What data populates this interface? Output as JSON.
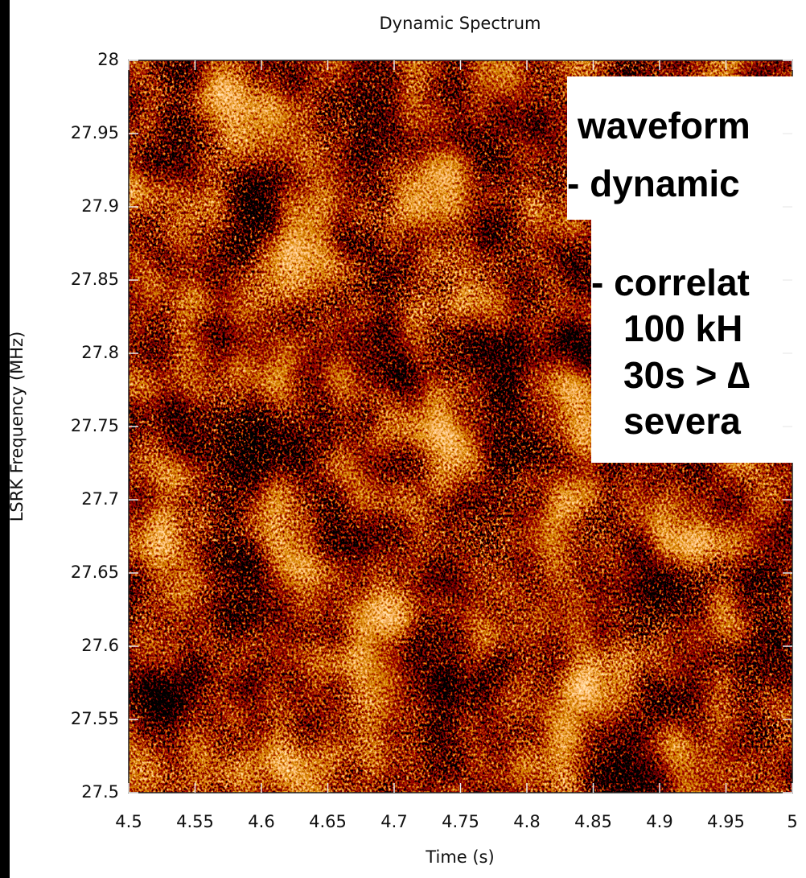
{
  "chart_data": {
    "type": "spectrogram",
    "title": "Dynamic Spectrum",
    "xlabel": "Time (s)",
    "ylabel": "LSRK Frequency (MHz)",
    "xlim": [
      4.5,
      5
    ],
    "ylim": [
      27.5,
      28
    ],
    "xticks": [
      4.5,
      4.55,
      4.6,
      4.65,
      4.7,
      4.75,
      4.8,
      4.85,
      4.9,
      4.95,
      5
    ],
    "yticks": [
      27.5,
      27.55,
      27.6,
      27.65,
      27.7,
      27.75,
      27.8,
      27.85,
      27.9,
      27.95,
      28
    ],
    "annotations": [
      "waveform",
      "- dynamic",
      "- correlat",
      "100 kH",
      "30s > ∆",
      "severa"
    ]
  }
}
